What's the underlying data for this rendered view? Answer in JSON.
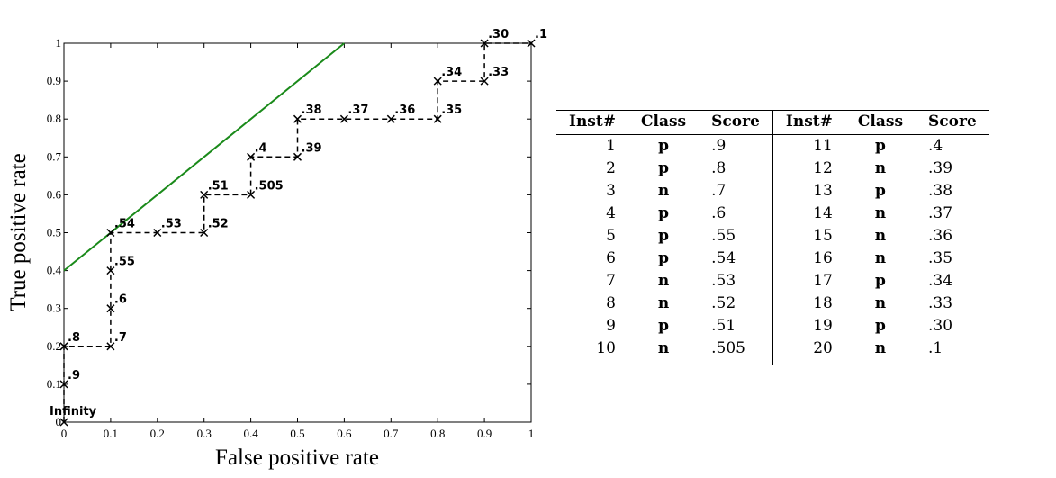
{
  "chart_data": {
    "type": "line",
    "xlabel": "False positive rate",
    "ylabel": "True positive rate",
    "xlim": [
      0,
      1
    ],
    "ylim": [
      0,
      1
    ],
    "x_ticks": [
      "0",
      "0.1",
      "0.2",
      "0.3",
      "0.4",
      "0.5",
      "0.6",
      "0.7",
      "0.8",
      "0.9",
      "1"
    ],
    "y_ticks": [
      "0",
      "0.1",
      "0.2",
      "0.3",
      "0.4",
      "0.5",
      "0.6",
      "0.7",
      "0.8",
      "0.9",
      "1"
    ],
    "roc_points": [
      {
        "x": 0,
        "y": 0,
        "label": "Infinity"
      },
      {
        "x": 0,
        "y": 0.1,
        "label": ".9"
      },
      {
        "x": 0,
        "y": 0.2,
        "label": ".8"
      },
      {
        "x": 0.1,
        "y": 0.2,
        "label": ".7"
      },
      {
        "x": 0.1,
        "y": 0.3,
        "label": ".6"
      },
      {
        "x": 0.1,
        "y": 0.4,
        "label": ".55"
      },
      {
        "x": 0.1,
        "y": 0.5,
        "label": ".54"
      },
      {
        "x": 0.2,
        "y": 0.5,
        "label": ".53"
      },
      {
        "x": 0.3,
        "y": 0.5,
        "label": ".52"
      },
      {
        "x": 0.3,
        "y": 0.6,
        "label": ".51"
      },
      {
        "x": 0.4,
        "y": 0.6,
        "label": ".505"
      },
      {
        "x": 0.4,
        "y": 0.7,
        "label": ".4"
      },
      {
        "x": 0.5,
        "y": 0.7,
        "label": ".39"
      },
      {
        "x": 0.5,
        "y": 0.8,
        "label": ".38"
      },
      {
        "x": 0.6,
        "y": 0.8,
        "label": ".37"
      },
      {
        "x": 0.7,
        "y": 0.8,
        "label": ".36"
      },
      {
        "x": 0.8,
        "y": 0.8,
        "label": ".35"
      },
      {
        "x": 0.8,
        "y": 0.9,
        "label": ".34"
      },
      {
        "x": 0.9,
        "y": 0.9,
        "label": ".33"
      },
      {
        "x": 0.9,
        "y": 1.0,
        "label": ".30"
      },
      {
        "x": 1.0,
        "y": 1.0,
        "label": ".1"
      }
    ],
    "iso_line": {
      "points": [
        {
          "x": 0,
          "y": 0.4
        },
        {
          "x": 0.6,
          "y": 1.0
        }
      ],
      "color": "#1a8a1a"
    },
    "roc_color": "#000000",
    "grid": false
  },
  "table": {
    "headers": [
      "Inst#",
      "Class",
      "Score",
      "Inst#",
      "Class",
      "Score"
    ],
    "rows": [
      [
        "1",
        "p",
        ".9",
        "11",
        "p",
        ".4"
      ],
      [
        "2",
        "p",
        ".8",
        "12",
        "n",
        ".39"
      ],
      [
        "3",
        "n",
        ".7",
        "13",
        "p",
        ".38"
      ],
      [
        "4",
        "p",
        ".6",
        "14",
        "n",
        ".37"
      ],
      [
        "5",
        "p",
        ".55",
        "15",
        "n",
        ".36"
      ],
      [
        "6",
        "p",
        ".54",
        "16",
        "n",
        ".35"
      ],
      [
        "7",
        "n",
        ".53",
        "17",
        "p",
        ".34"
      ],
      [
        "8",
        "n",
        ".52",
        "18",
        "n",
        ".33"
      ],
      [
        "9",
        "p",
        ".51",
        "19",
        "p",
        ".30"
      ],
      [
        "10",
        "n",
        ".505",
        "20",
        "n",
        ".1"
      ]
    ]
  }
}
